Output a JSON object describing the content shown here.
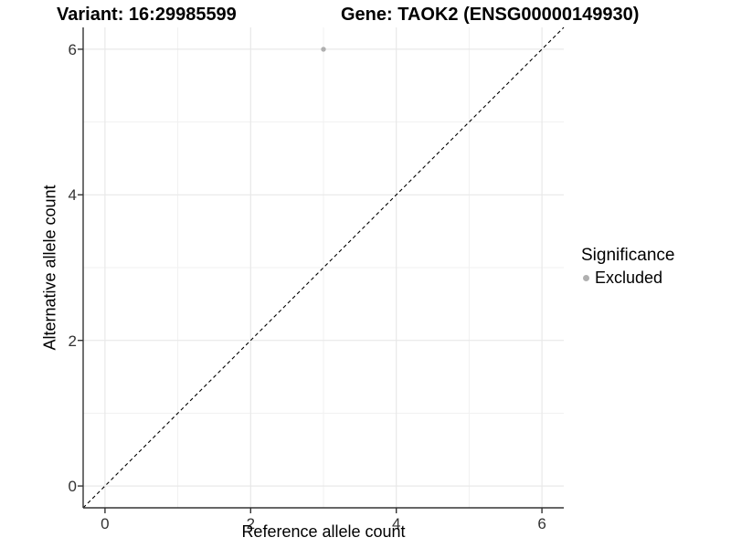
{
  "header": {
    "title_variant": "Variant: 16:29985599",
    "title_gene": "Gene: TAOK2 (ENSG00000149930)"
  },
  "chart_data": {
    "type": "scatter",
    "title_left": "Variant: 16:29985599",
    "title_right": "Gene: TAOK2 (ENSG00000149930)",
    "xlabel": "Reference allele count",
    "ylabel": "Alternative allele count",
    "xlim": [
      -0.3,
      6.3
    ],
    "ylim": [
      -0.3,
      6.3
    ],
    "x_ticks": [
      0,
      2,
      4,
      6
    ],
    "y_ticks": [
      0,
      2,
      4,
      6
    ],
    "x_minor_gridlines": [
      1,
      3,
      5
    ],
    "y_minor_gridlines": [
      1,
      3,
      5
    ],
    "grid": "on",
    "points": [
      {
        "x": 3,
        "y": 6,
        "significance": "Excluded"
      }
    ],
    "reference_line": {
      "kind": "identity",
      "style": "dashed",
      "from": [
        -0.3,
        -0.3
      ],
      "to": [
        6.3,
        6.3
      ]
    },
    "legend": {
      "title": "Significance",
      "position": "right",
      "items": [
        {
          "label": "Excluded",
          "color": "#b0b0b0"
        }
      ]
    },
    "colors": {
      "point": "#b0b0b0",
      "grid_major": "#e8e8e8",
      "grid_minor": "#f1f1f1",
      "axis": "#333333",
      "tick_label": "#333333",
      "reference_line": "#000000",
      "background": "#ffffff"
    }
  }
}
